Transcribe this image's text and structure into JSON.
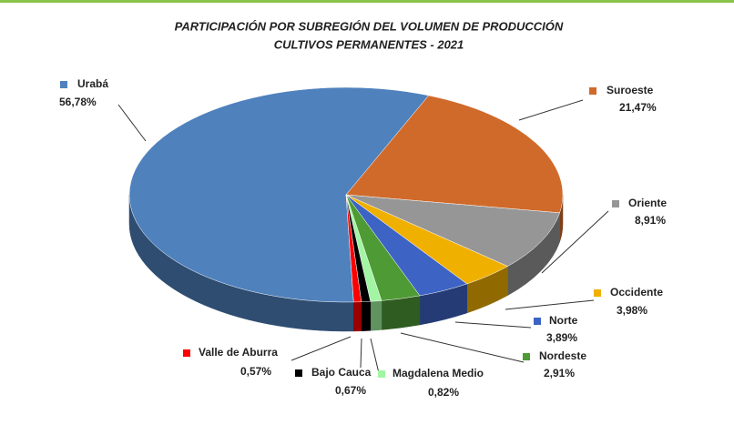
{
  "chart_data": {
    "type": "pie",
    "title": "PARTICIPACIÓN POR SUBREGIÓN DEL VOLUMEN DE PRODUCCIÓN",
    "subtitle": "CULTIVOS PERMANENTES - 2021",
    "categories": [
      "Urabá",
      "Suroeste",
      "Oriente",
      "Occidente",
      "Norte",
      "Nordeste",
      "Magdalena Medio",
      "Bajo Cauca",
      "Valle de Aburra"
    ],
    "values": [
      56.78,
      21.47,
      8.91,
      3.98,
      3.89,
      2.91,
      0.82,
      0.67,
      0.57
    ],
    "value_labels": [
      "56,78%",
      "21,47%",
      "8,91%",
      "3,98%",
      "3,89%",
      "2,91%",
      "0,82%",
      "0,67%",
      "0,57%"
    ],
    "colors": [
      "#4f81bd",
      "#d06a2a",
      "#969696",
      "#f0b000",
      "#3d63c4",
      "#4e9a35",
      "#a2f5a2",
      "#000000",
      "#ff0000"
    ]
  }
}
